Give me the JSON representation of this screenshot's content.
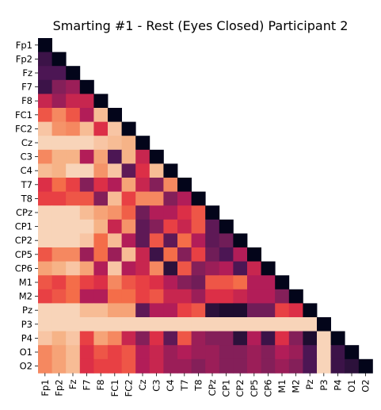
{
  "chart_data": {
    "type": "heatmap",
    "title": "Smarting #1 - Rest (Eyes Closed) Participant 2",
    "xlabel": "",
    "ylabel": "",
    "mask": "upper-triangle",
    "colormap": "rocket",
    "channels": [
      "Fp1",
      "Fp2",
      "Fz",
      "F7",
      "F8",
      "FC1",
      "FC2",
      "Cz",
      "C3",
      "C4",
      "T7",
      "T8",
      "CPz",
      "CP1",
      "CP2",
      "CP5",
      "CP6",
      "M1",
      "M2",
      "Pz",
      "P3",
      "P4",
      "O1",
      "O2"
    ],
    "value_range": [
      0,
      1
    ],
    "values": [
      [
        0.0
      ],
      [
        0.2,
        0.0
      ],
      [
        0.25,
        0.25,
        0.0
      ],
      [
        0.2,
        0.4,
        0.45,
        0.0
      ],
      [
        0.55,
        0.45,
        0.55,
        0.55,
        0.0
      ],
      [
        0.7,
        0.8,
        0.7,
        0.5,
        0.9,
        0.0
      ],
      [
        0.92,
        0.82,
        0.8,
        0.9,
        0.6,
        0.92,
        0.0
      ],
      [
        0.95,
        0.95,
        0.95,
        0.95,
        0.92,
        0.9,
        0.88,
        0.0
      ],
      [
        0.8,
        0.88,
        0.88,
        0.5,
        0.85,
        0.25,
        0.88,
        0.55,
        0.0
      ],
      [
        0.9,
        0.88,
        0.95,
        0.95,
        0.82,
        0.92,
        0.3,
        0.6,
        0.9,
        0.0
      ],
      [
        0.6,
        0.75,
        0.65,
        0.4,
        0.6,
        0.5,
        0.85,
        0.55,
        0.4,
        0.8,
        0.0
      ],
      [
        0.65,
        0.65,
        0.7,
        0.7,
        0.4,
        0.9,
        0.65,
        0.8,
        0.8,
        0.4,
        0.5,
        0.0
      ],
      [
        0.95,
        0.95,
        0.95,
        0.9,
        0.85,
        0.82,
        0.72,
        0.35,
        0.5,
        0.5,
        0.6,
        0.7,
        0.0
      ],
      [
        0.95,
        0.95,
        0.95,
        0.95,
        0.88,
        0.55,
        0.82,
        0.3,
        0.4,
        0.65,
        0.55,
        0.7,
        0.3,
        0.0
      ],
      [
        0.95,
        0.95,
        0.95,
        0.92,
        0.75,
        0.9,
        0.5,
        0.3,
        0.7,
        0.3,
        0.75,
        0.5,
        0.3,
        0.35,
        0.0
      ],
      [
        0.7,
        0.8,
        0.8,
        0.45,
        0.75,
        0.45,
        0.9,
        0.55,
        0.2,
        0.75,
        0.4,
        0.65,
        0.35,
        0.25,
        0.5,
        0.0
      ],
      [
        0.85,
        0.88,
        0.92,
        0.85,
        0.5,
        0.92,
        0.5,
        0.55,
        0.8,
        0.15,
        0.7,
        0.4,
        0.45,
        0.5,
        0.25,
        0.55,
        0.0
      ],
      [
        0.7,
        0.65,
        0.75,
        0.65,
        0.6,
        0.8,
        0.7,
        0.65,
        0.6,
        0.5,
        0.4,
        0.35,
        0.7,
        0.7,
        0.75,
        0.5,
        0.5,
        0.0
      ],
      [
        0.65,
        0.7,
        0.75,
        0.5,
        0.5,
        0.75,
        0.75,
        0.65,
        0.7,
        0.55,
        0.55,
        0.45,
        0.6,
        0.6,
        0.55,
        0.5,
        0.5,
        0.4,
        0.0
      ],
      [
        0.95,
        0.95,
        0.95,
        0.9,
        0.9,
        0.85,
        0.85,
        0.3,
        0.5,
        0.5,
        0.65,
        0.7,
        0.15,
        0.1,
        0.1,
        0.35,
        0.35,
        0.65,
        0.6,
        0.0
      ],
      [
        0.95,
        0.95,
        0.95,
        0.95,
        0.95,
        0.95,
        0.95,
        0.95,
        0.95,
        0.95,
        0.95,
        0.95,
        0.95,
        0.95,
        0.95,
        0.95,
        0.95,
        0.95,
        0.95,
        0.95,
        0.0
      ],
      [
        0.92,
        0.88,
        0.92,
        0.65,
        0.85,
        0.8,
        0.55,
        0.4,
        0.6,
        0.3,
        0.7,
        0.45,
        0.4,
        0.4,
        0.15,
        0.5,
        0.2,
        0.6,
        0.4,
        0.1,
        0.95,
        0.0
      ],
      [
        0.8,
        0.85,
        0.9,
        0.6,
        0.7,
        0.65,
        0.7,
        0.5,
        0.55,
        0.45,
        0.5,
        0.45,
        0.45,
        0.4,
        0.4,
        0.45,
        0.4,
        0.5,
        0.45,
        0.25,
        0.95,
        0.2,
        0.0
      ],
      [
        0.8,
        0.85,
        0.9,
        0.6,
        0.65,
        0.65,
        0.7,
        0.5,
        0.55,
        0.45,
        0.45,
        0.4,
        0.45,
        0.4,
        0.4,
        0.45,
        0.4,
        0.45,
        0.4,
        0.25,
        0.95,
        0.2,
        0.15,
        0.0
      ]
    ]
  }
}
